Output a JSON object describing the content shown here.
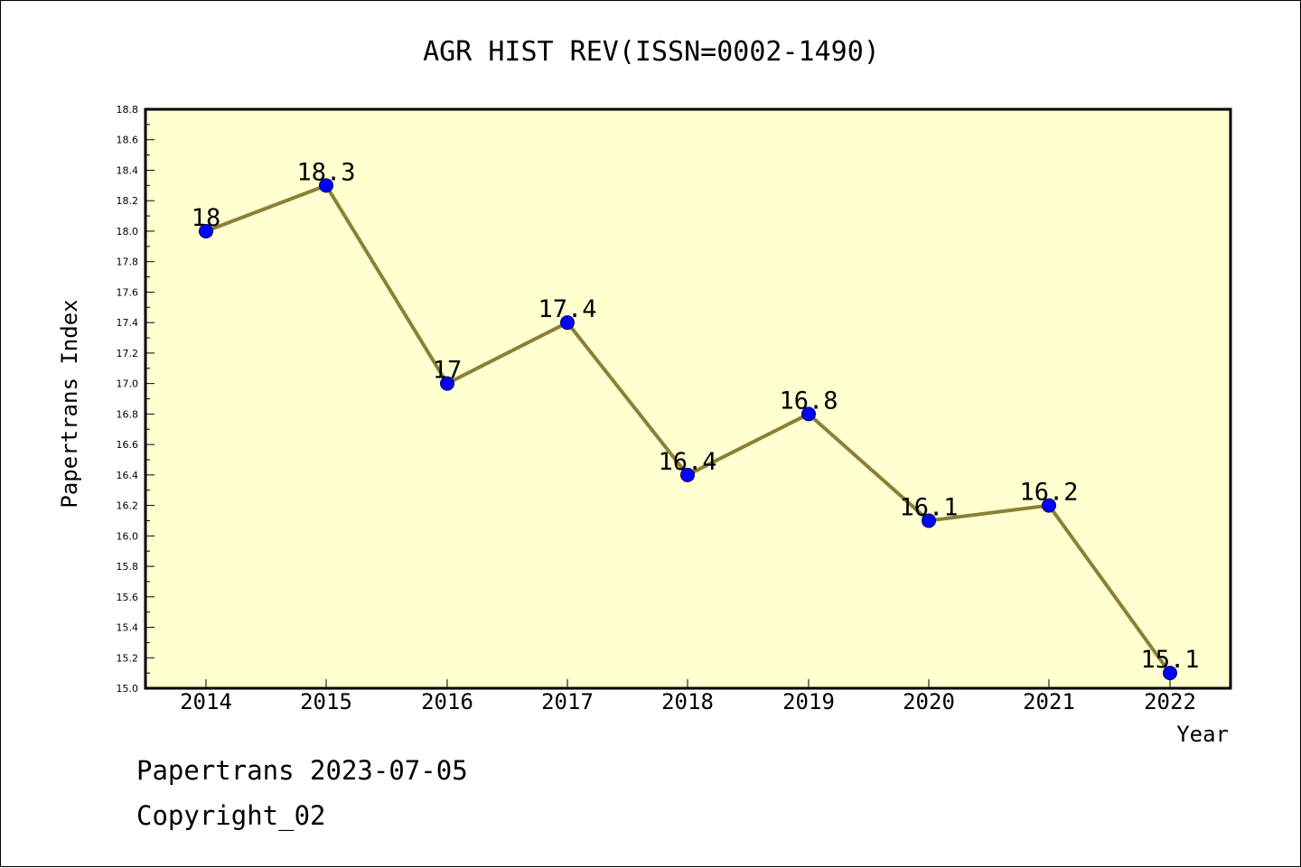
{
  "chart_data": {
    "type": "line",
    "title": "AGR HIST REV(ISSN=0002-1490)",
    "xlabel": "Year",
    "ylabel": "Papertrans Index",
    "categories": [
      "2014",
      "2015",
      "2016",
      "2017",
      "2018",
      "2019",
      "2020",
      "2021",
      "2022"
    ],
    "series": [
      {
        "values": [
          18,
          18.3,
          17,
          17.4,
          16.4,
          16.8,
          16.1,
          16.2,
          15.1
        ],
        "labels": [
          "18",
          "18.3",
          "17",
          "17.4",
          "16.4",
          "16.8",
          "16.1",
          "16.2",
          "15.1"
        ]
      }
    ],
    "ylim": [
      15.0,
      18.8
    ],
    "yticks": [
      "15.0",
      "15.2",
      "15.4",
      "15.6",
      "15.8",
      "16.0",
      "16.2",
      "16.4",
      "16.6",
      "16.8",
      "17.0",
      "17.2",
      "17.4",
      "17.6",
      "17.8",
      "18.0",
      "18.2",
      "18.4",
      "18.6",
      "18.8"
    ],
    "grid": false,
    "colors": {
      "plot_background": "#ffffd0",
      "line": "#8b8036",
      "marker": "#0000ff"
    }
  },
  "footer": {
    "line1": "Papertrans 2023-07-05",
    "line2": "Copyright_02"
  }
}
